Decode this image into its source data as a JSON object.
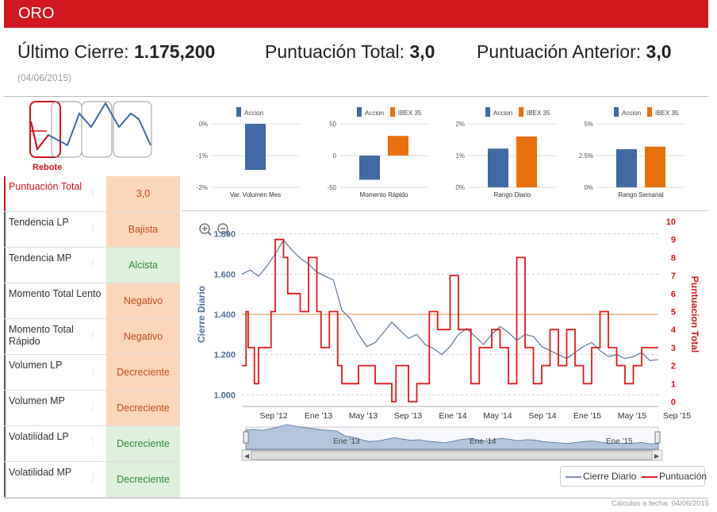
{
  "header": {
    "title": "ORO"
  },
  "summary": {
    "close_label": "Último Cierre:",
    "close_value": "1.175,200",
    "total_label": "Puntuación Total:",
    "total_value": "3,0",
    "prev_label": "Puntuación Anterior:",
    "prev_value": "3,0",
    "date": "(04/06/2015)"
  },
  "pattern": {
    "label": "Rebote"
  },
  "indicators": [
    {
      "label": "Puntuación Total",
      "value": "3,0",
      "style": "neutral",
      "active": true
    },
    {
      "label": "Tendencia LP",
      "value": "Bajista",
      "style": "orange",
      "active": false
    },
    {
      "label": "Tendencia MP",
      "value": "Alcista",
      "style": "green",
      "active": false
    },
    {
      "label": "Momento Total Lento",
      "value": "Negativo",
      "style": "orange",
      "active": false
    },
    {
      "label": "Momento Total Rápido",
      "value": "Negativo",
      "style": "orange",
      "active": false
    },
    {
      "label": "Volumen LP",
      "value": "Decreciente",
      "style": "orange",
      "active": false
    },
    {
      "label": "Volumen MP",
      "value": "Decreciente",
      "style": "orange",
      "active": false
    },
    {
      "label": "Volatilidad LP",
      "value": "Decreciente",
      "style": "green",
      "active": false
    },
    {
      "label": "Volatilidad MP",
      "value": "Decreciente",
      "style": "green",
      "active": false
    }
  ],
  "colors": {
    "brand": "#d0181f",
    "accion": "#3f6aa5",
    "ibex": "#e8700d",
    "price": "#4d6f98",
    "score": "#e31a1c"
  },
  "chart_data": [
    {
      "type": "bar",
      "xlabel": "Var. Volumen Mes",
      "series": [
        {
          "name": "Accion",
          "values": [
            -1.45
          ]
        }
      ],
      "yticks": [
        "0%",
        "-1%",
        "-2%"
      ],
      "ylim": [
        -2,
        0
      ]
    },
    {
      "type": "bar",
      "xlabel": "Momento Rápido",
      "series": [
        {
          "name": "Accion",
          "values": [
            -38
          ]
        },
        {
          "name": "IBEX 35",
          "values": [
            31
          ]
        }
      ],
      "yticks": [
        "50",
        "0",
        "-50"
      ],
      "ylim": [
        -50,
        50
      ]
    },
    {
      "type": "bar",
      "xlabel": "Rango Diario",
      "series": [
        {
          "name": "Accion",
          "values": [
            1.22
          ]
        },
        {
          "name": "IBEX 35",
          "values": [
            1.6
          ]
        }
      ],
      "yticks": [
        "2%",
        "1%",
        "0%"
      ],
      "ylim": [
        0,
        2
      ]
    },
    {
      "type": "bar",
      "xlabel": "Rango Semanal",
      "series": [
        {
          "name": "Accion",
          "values": [
            3.0
          ]
        },
        {
          "name": "IBEX 35",
          "values": [
            3.2
          ]
        }
      ],
      "yticks": [
        "5%",
        "2.5%",
        "0%"
      ],
      "ylim": [
        0,
        5
      ]
    },
    {
      "type": "line",
      "ylabel": "Cierre Diario",
      "y2label": "Puntuacion Total",
      "ylim": [
        950,
        1850
      ],
      "y2lim": [
        0,
        10
      ],
      "yticks": [
        "1.000",
        "1.200",
        "1.400",
        "1.600",
        "1.800"
      ],
      "y2ticks": [
        "0",
        "1",
        "2",
        "3",
        "4",
        "5",
        "6",
        "7",
        "8",
        "9",
        "10"
      ],
      "xticks": [
        "Sep '12",
        "Ene '13",
        "May '13",
        "Sep '13",
        "Ene '14",
        "May '14",
        "Sep '14",
        "Ene '15",
        "May '15",
        "Sep '15"
      ],
      "navigator_labels": [
        "Ene '13",
        "Ene '14",
        "Ene '15"
      ],
      "reference_line": 1400,
      "series": [
        {
          "name": "Cierre Diario",
          "t": [
            0,
            0.02,
            0.04,
            0.06,
            0.08,
            0.1,
            0.12,
            0.14,
            0.16,
            0.18,
            0.2,
            0.22,
            0.24,
            0.26,
            0.28,
            0.3,
            0.32,
            0.34,
            0.36,
            0.38,
            0.4,
            0.42,
            0.44,
            0.46,
            0.48,
            0.5,
            0.52,
            0.54,
            0.56,
            0.58,
            0.6,
            0.62,
            0.64,
            0.66,
            0.68,
            0.7,
            0.72,
            0.74,
            0.76,
            0.78,
            0.8,
            0.82,
            0.84,
            0.86,
            0.88,
            0.9,
            0.92,
            0.94,
            0.96,
            0.98,
            1.0
          ],
          "values": [
            1600,
            1620,
            1590,
            1640,
            1700,
            1770,
            1720,
            1680,
            1650,
            1610,
            1590,
            1570,
            1420,
            1380,
            1300,
            1240,
            1260,
            1310,
            1360,
            1320,
            1280,
            1300,
            1250,
            1230,
            1200,
            1240,
            1300,
            1330,
            1290,
            1250,
            1300,
            1340,
            1310,
            1270,
            1300,
            1290,
            1240,
            1220,
            1200,
            1180,
            1210,
            1240,
            1260,
            1220,
            1190,
            1200,
            1180,
            1190,
            1210,
            1170,
            1175
          ]
        },
        {
          "name": "Puntuación",
          "t": [
            0,
            0.01,
            0.015,
            0.03,
            0.04,
            0.07,
            0.08,
            0.1,
            0.11,
            0.14,
            0.16,
            0.18,
            0.19,
            0.21,
            0.23,
            0.24,
            0.27,
            0.28,
            0.32,
            0.36,
            0.37,
            0.4,
            0.42,
            0.45,
            0.47,
            0.5,
            0.52,
            0.55,
            0.57,
            0.6,
            0.62,
            0.64,
            0.66,
            0.68,
            0.7,
            0.72,
            0.74,
            0.76,
            0.78,
            0.8,
            0.82,
            0.84,
            0.86,
            0.88,
            0.9,
            0.92,
            0.94,
            0.96,
            1.0
          ],
          "values": [
            2,
            5,
            3,
            1,
            3,
            5,
            9,
            8,
            6,
            5,
            8,
            5,
            3,
            5,
            2,
            1,
            1,
            2,
            1,
            0,
            2,
            0,
            1,
            5,
            4,
            7,
            4,
            1,
            3,
            4,
            3,
            1,
            8,
            3,
            1,
            2,
            4,
            2,
            4,
            2,
            1,
            3,
            5,
            3,
            2,
            1,
            2,
            3,
            3
          ]
        }
      ]
    }
  ],
  "legend": {
    "items": [
      "Cierre Diario",
      "Puntuación"
    ]
  },
  "footer": {
    "note": "Cálculos a fecha: 04/06/2015"
  }
}
